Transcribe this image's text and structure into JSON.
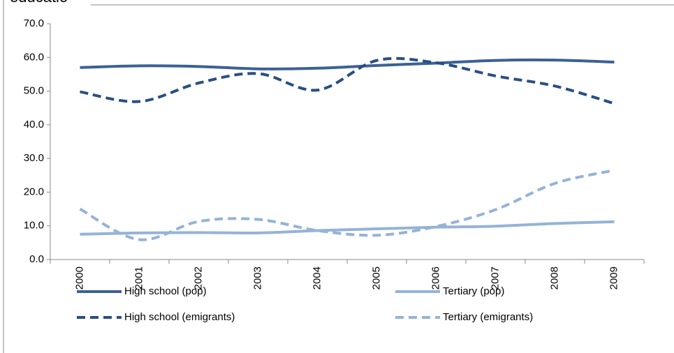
{
  "chart_data": {
    "type": "line",
    "title": "educatio",
    "categories": [
      "2000",
      "2001",
      "2002",
      "2003",
      "2004",
      "2005",
      "2006",
      "2007",
      "2008",
      "2009"
    ],
    "series": [
      {
        "name": "High school (pop)",
        "color": "#3b6195",
        "dash": false,
        "values": [
          57.0,
          57.5,
          57.3,
          56.6,
          56.8,
          57.6,
          58.3,
          59.1,
          59.2,
          58.6
        ]
      },
      {
        "name": "Tertiary (pop)",
        "color": "#95b3d7",
        "dash": false,
        "values": [
          7.5,
          7.9,
          8.0,
          7.9,
          8.6,
          9.1,
          9.6,
          9.9,
          10.7,
          11.2
        ]
      },
      {
        "name": "High school (emigrants)",
        "color": "#284f80",
        "dash": true,
        "values": [
          49.8,
          46.9,
          52.4,
          55.2,
          50.3,
          59.1,
          58.4,
          54.5,
          51.5,
          46.3
        ]
      },
      {
        "name": "Tertiary (emigrants)",
        "color": "#95b3d7",
        "dash": true,
        "values": [
          15.0,
          5.9,
          11.3,
          11.9,
          8.6,
          7.2,
          9.8,
          14.8,
          22.6,
          26.5
        ]
      }
    ],
    "ylim": [
      0,
      70
    ],
    "yticks": [
      {
        "value": 0,
        "label": "0.0"
      },
      {
        "value": 10,
        "label": "10.0"
      },
      {
        "value": 20,
        "label": "20.0"
      },
      {
        "value": 30,
        "label": "30.0"
      },
      {
        "value": 40,
        "label": "40.0"
      },
      {
        "value": 50,
        "label": "50.0"
      },
      {
        "value": 60,
        "label": "60.0"
      },
      {
        "value": 70,
        "label": "70.0"
      }
    ],
    "grid": false,
    "smooth": true
  }
}
